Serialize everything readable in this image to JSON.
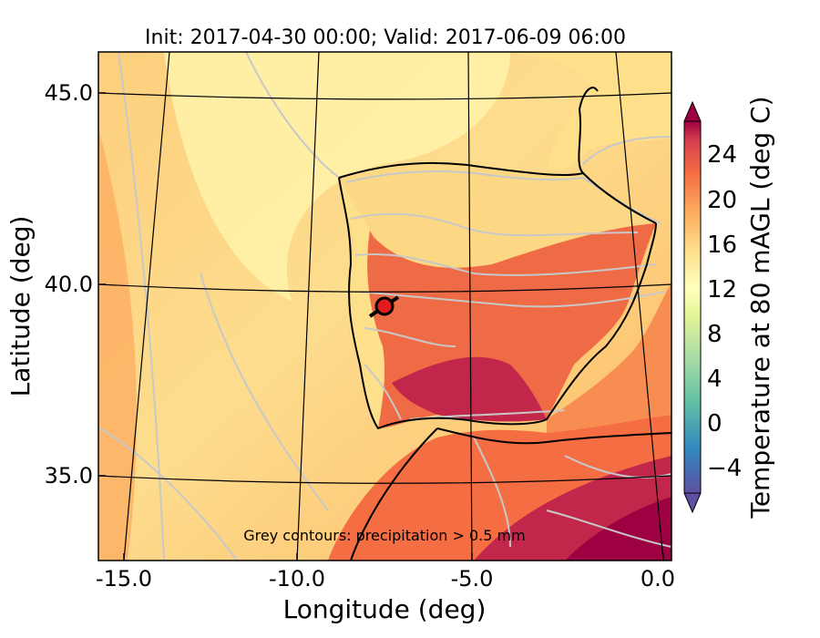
{
  "title": "Init: 2017-04-30 00:00; Valid: 2017-06-09 06:00",
  "xlabel": "Longitude (deg)",
  "ylabel": "Latitude (deg)",
  "colorbar_label": "Temperature at 80 mAGL (deg C)",
  "annotation": "Grey contours: precipitation > 0.5 mm",
  "x_ticks": [
    "-15.0",
    "-10.0",
    "-5.0",
    "0.0"
  ],
  "y_ticks": [
    "45.0",
    "40.0",
    "35.0"
  ],
  "colorbar_ticks": [
    "24",
    "20",
    "16",
    "12",
    "8",
    "4",
    "0",
    "−4"
  ],
  "colors": {
    "sea_cool": "#fdf3a9",
    "sea_warm": "#fdbf6f",
    "land_hot": "#e65c3c",
    "land_very_hot": "#b2183b",
    "precip_contour": "#c8c8c8",
    "marker": "#e41a1c"
  }
}
